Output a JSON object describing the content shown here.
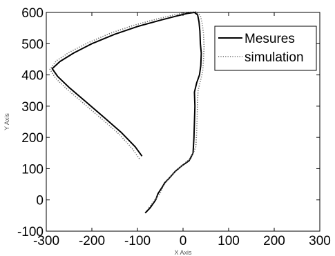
{
  "chart_data": {
    "type": "line",
    "xlabel": "X Axis",
    "ylabel": "Y Axis",
    "xlim": [
      -300,
      300
    ],
    "ylim": [
      -100,
      600
    ],
    "xticks": [
      -300,
      -200,
      -100,
      0,
      100,
      200,
      300
    ],
    "yticks": [
      -100,
      0,
      100,
      200,
      300,
      400,
      500,
      600
    ],
    "grid": false,
    "legend_position": "top-right",
    "series": [
      {
        "name": "Mesures",
        "style": "solid",
        "color": "#000000",
        "points": [
          [
            -83,
            -42
          ],
          [
            -72,
            -25
          ],
          [
            -60,
            0
          ],
          [
            -55,
            20
          ],
          [
            -46,
            40
          ],
          [
            -40,
            55
          ],
          [
            -30,
            70
          ],
          [
            -18,
            90
          ],
          [
            -2,
            110
          ],
          [
            13,
            125
          ],
          [
            22,
            150
          ],
          [
            24,
            200
          ],
          [
            25,
            250
          ],
          [
            26,
            300
          ],
          [
            25,
            345
          ],
          [
            30,
            375
          ],
          [
            36,
            400
          ],
          [
            39,
            430
          ],
          [
            40,
            470
          ],
          [
            38,
            500
          ],
          [
            37,
            540
          ],
          [
            35,
            570
          ],
          [
            32,
            592
          ],
          [
            25,
            600
          ],
          [
            10,
            597
          ],
          [
            -10,
            590
          ],
          [
            -50,
            575
          ],
          [
            -100,
            555
          ],
          [
            -150,
            530
          ],
          [
            -200,
            500
          ],
          [
            -240,
            470
          ],
          [
            -270,
            443
          ],
          [
            -287,
            420
          ],
          [
            -275,
            395
          ],
          [
            -250,
            360
          ],
          [
            -210,
            310
          ],
          [
            -170,
            260
          ],
          [
            -135,
            215
          ],
          [
            -105,
            170
          ],
          [
            -90,
            140
          ]
        ]
      },
      {
        "name": "simulation",
        "style": "dotted",
        "color": "#666666",
        "points": [
          [
            -75,
            -25
          ],
          [
            -62,
            0
          ],
          [
            -50,
            22
          ],
          [
            -43,
            45
          ],
          [
            -35,
            62
          ],
          [
            -24,
            80
          ],
          [
            -10,
            100
          ],
          [
            4,
            118
          ],
          [
            18,
            135
          ],
          [
            28,
            170
          ],
          [
            30,
            220
          ],
          [
            31,
            270
          ],
          [
            32,
            320
          ],
          [
            33,
            350
          ],
          [
            38,
            380
          ],
          [
            43,
            410
          ],
          [
            45,
            450
          ],
          [
            46,
            490
          ],
          [
            45,
            530
          ],
          [
            42,
            565
          ],
          [
            38,
            590
          ],
          [
            28,
            602
          ],
          [
            5,
            600
          ],
          [
            -20,
            592
          ],
          [
            -60,
            578
          ],
          [
            -110,
            558
          ],
          [
            -160,
            533
          ],
          [
            -210,
            502
          ],
          [
            -250,
            472
          ],
          [
            -278,
            445
          ],
          [
            -292,
            418
          ],
          [
            -280,
            390
          ],
          [
            -255,
            355
          ],
          [
            -215,
            305
          ],
          [
            -175,
            255
          ],
          [
            -140,
            210
          ],
          [
            -112,
            165
          ],
          [
            -95,
            130
          ]
        ]
      }
    ]
  }
}
